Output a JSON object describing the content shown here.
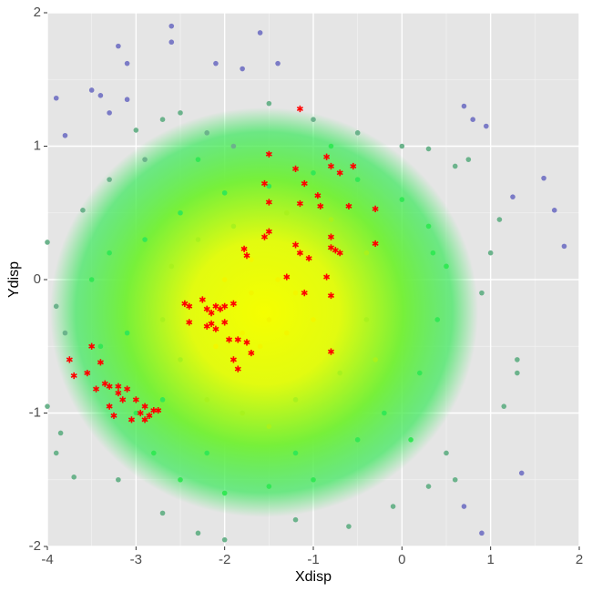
{
  "chart_data": {
    "type": "scatter",
    "xlabel": "Xdisp",
    "ylabel": "Ydisp",
    "xlim": [
      -4,
      2
    ],
    "ylim": [
      -2,
      2
    ],
    "xticks": [
      -4,
      -3,
      -2,
      -1,
      0,
      1,
      2
    ],
    "yticks": [
      -2,
      -1,
      0,
      1,
      2
    ],
    "grid": true,
    "series": [
      {
        "color": "#7b7bc6",
        "marker": "circle",
        "x": [
          -3.9,
          -3.8,
          -3.5,
          -3.4,
          -3.3,
          -3.2,
          -3.1,
          -2.6,
          -2.6,
          -2.1,
          -1.8,
          -1.6,
          -1.4,
          0.95,
          0.7,
          1.25,
          1.6,
          1.72,
          1.83,
          0.9,
          0.7,
          1.35,
          -3.1,
          0.8
        ],
        "y": [
          1.36,
          1.08,
          1.42,
          1.38,
          1.25,
          1.75,
          1.62,
          1.9,
          1.78,
          1.62,
          1.58,
          1.85,
          1.62,
          1.15,
          1.3,
          0.62,
          0.76,
          0.52,
          0.25,
          -1.9,
          -1.7,
          -1.45,
          1.35,
          1.2
        ]
      },
      {
        "color": "#6cb38c",
        "marker": "circle",
        "x": [
          -3.0,
          -2.7,
          -2.5,
          -2.2,
          -1.9,
          -1.5,
          -1.0,
          -0.5,
          0.0,
          0.3,
          0.6,
          0.75,
          1.1,
          1.0,
          0.9,
          1.3,
          1.3,
          1.15,
          0.5,
          0.3,
          -0.1,
          -0.6,
          -1.2,
          -2.0,
          -2.3,
          -2.7,
          -3.2,
          -3.7,
          -3.9,
          -4.0,
          -3.8,
          -3.9,
          -3.6,
          -3.3,
          -2.9,
          -4.0,
          -3.85,
          0.6
        ],
        "y": [
          1.12,
          1.2,
          1.25,
          1.1,
          1.0,
          1.32,
          1.2,
          1.1,
          1.0,
          0.98,
          0.85,
          0.9,
          0.45,
          0.2,
          -0.1,
          -0.6,
          -0.7,
          -0.95,
          -1.3,
          -1.55,
          -1.7,
          -1.85,
          -1.8,
          -1.95,
          -1.9,
          -1.75,
          -1.5,
          -1.48,
          -1.3,
          -0.95,
          -0.4,
          -0.2,
          0.52,
          0.75,
          0.9,
          0.28,
          -1.15,
          -1.5
        ]
      },
      {
        "color": "#33e855",
        "marker": "circle",
        "x": [
          -3.3,
          -3.1,
          -3.0,
          -2.8,
          -2.5,
          -2.0,
          -1.5,
          -1.0,
          -0.5,
          -0.2,
          0.2,
          0.4,
          0.5,
          0.3,
          0.0,
          -0.5,
          -1.0,
          -1.5,
          -2.0,
          -2.5,
          -2.9,
          -3.4,
          -2.7,
          0.1,
          -1.2,
          -2.2,
          0.35,
          -3.5,
          -0.8,
          -2.3
        ],
        "y": [
          0.2,
          -0.4,
          -1.0,
          -1.3,
          -1.5,
          -1.6,
          -1.55,
          -1.5,
          -1.2,
          -1.0,
          -0.7,
          -0.3,
          0.1,
          0.4,
          0.6,
          0.75,
          0.8,
          0.7,
          0.65,
          0.5,
          0.3,
          -0.5,
          -0.9,
          -1.2,
          -1.3,
          -1.3,
          0.2,
          0.0,
          1.0,
          0.9
        ]
      },
      {
        "color": "#a8f21e",
        "marker": "circle",
        "x": [
          -2.6,
          -2.5,
          -2.2,
          -1.8,
          -1.2,
          -0.7,
          -0.4,
          -0.4,
          -0.8,
          -1.3,
          -1.9,
          -2.3,
          -2.7,
          -0.3,
          -1.5
        ],
        "y": [
          0.1,
          -0.6,
          -0.9,
          -1.0,
          -0.9,
          -0.7,
          -0.3,
          0.2,
          0.45,
          0.5,
          0.4,
          0.3,
          -0.3,
          -0.6,
          -1.1
        ]
      },
      {
        "color": "#f2f700",
        "marker": "circle",
        "x": [
          -1.9,
          -1.7,
          -1.5,
          -1.4,
          -1.6,
          -1.8,
          -1.3,
          -2.0,
          -1.2,
          -1.7,
          -2.1,
          -1.0
        ],
        "y": [
          -0.2,
          -0.1,
          -0.3,
          0.0,
          -0.5,
          -0.4,
          -0.4,
          0.0,
          -0.1,
          0.15,
          -0.5,
          -0.3
        ]
      },
      {
        "color": "#ff0000",
        "marker": "star",
        "x": [
          -3.75,
          -3.7,
          -3.55,
          -3.5,
          -3.45,
          -3.4,
          -3.35,
          -3.3,
          -3.25,
          -3.2,
          -3.15,
          -3.1,
          -3.05,
          -3.0,
          -2.95,
          -2.9,
          -2.9,
          -2.85,
          -2.8,
          -2.75,
          -3.2,
          -3.3,
          -2.45,
          -2.4,
          -2.4,
          -2.25,
          -2.2,
          -2.15,
          -2.1,
          -2.05,
          -2.0,
          -2.2,
          -2.15,
          -2.1,
          -2.0,
          -1.95,
          -1.9,
          -1.85,
          -1.75,
          -1.7,
          -1.9,
          -1.85,
          -1.78,
          -1.75,
          -1.55,
          -1.5,
          -1.55,
          -1.5,
          -1.5,
          -1.3,
          -1.2,
          -1.15,
          -1.1,
          -1.05,
          -1.2,
          -1.15,
          -1.1,
          -1.15,
          -0.95,
          -0.92,
          -0.85,
          -0.8,
          -0.7,
          -0.55,
          -0.8,
          -0.8,
          -0.75,
          -0.7,
          -0.85,
          -0.8,
          -0.6,
          -0.3,
          -0.3,
          -0.8
        ],
        "y": [
          -0.6,
          -0.72,
          -0.7,
          -0.5,
          -0.82,
          -0.62,
          -0.78,
          -0.95,
          -1.02,
          -0.85,
          -0.9,
          -0.82,
          -1.05,
          -0.9,
          -1.0,
          -0.95,
          -1.05,
          -1.02,
          -0.98,
          -0.98,
          -0.8,
          -0.8,
          -0.18,
          -0.2,
          -0.32,
          -0.15,
          -0.22,
          -0.25,
          -0.2,
          -0.22,
          -0.2,
          -0.35,
          -0.33,
          -0.37,
          -0.32,
          -0.45,
          -0.18,
          -0.45,
          -0.47,
          -0.55,
          -0.6,
          -0.67,
          0.23,
          0.18,
          0.32,
          0.36,
          0.72,
          0.58,
          0.94,
          0.02,
          0.26,
          0.2,
          -0.1,
          0.16,
          0.83,
          0.57,
          0.72,
          1.28,
          0.63,
          0.55,
          0.92,
          0.85,
          0.8,
          0.85,
          0.32,
          0.24,
          0.22,
          0.2,
          0.02,
          -0.12,
          0.55,
          0.53,
          0.27,
          -0.54
        ]
      }
    ]
  }
}
